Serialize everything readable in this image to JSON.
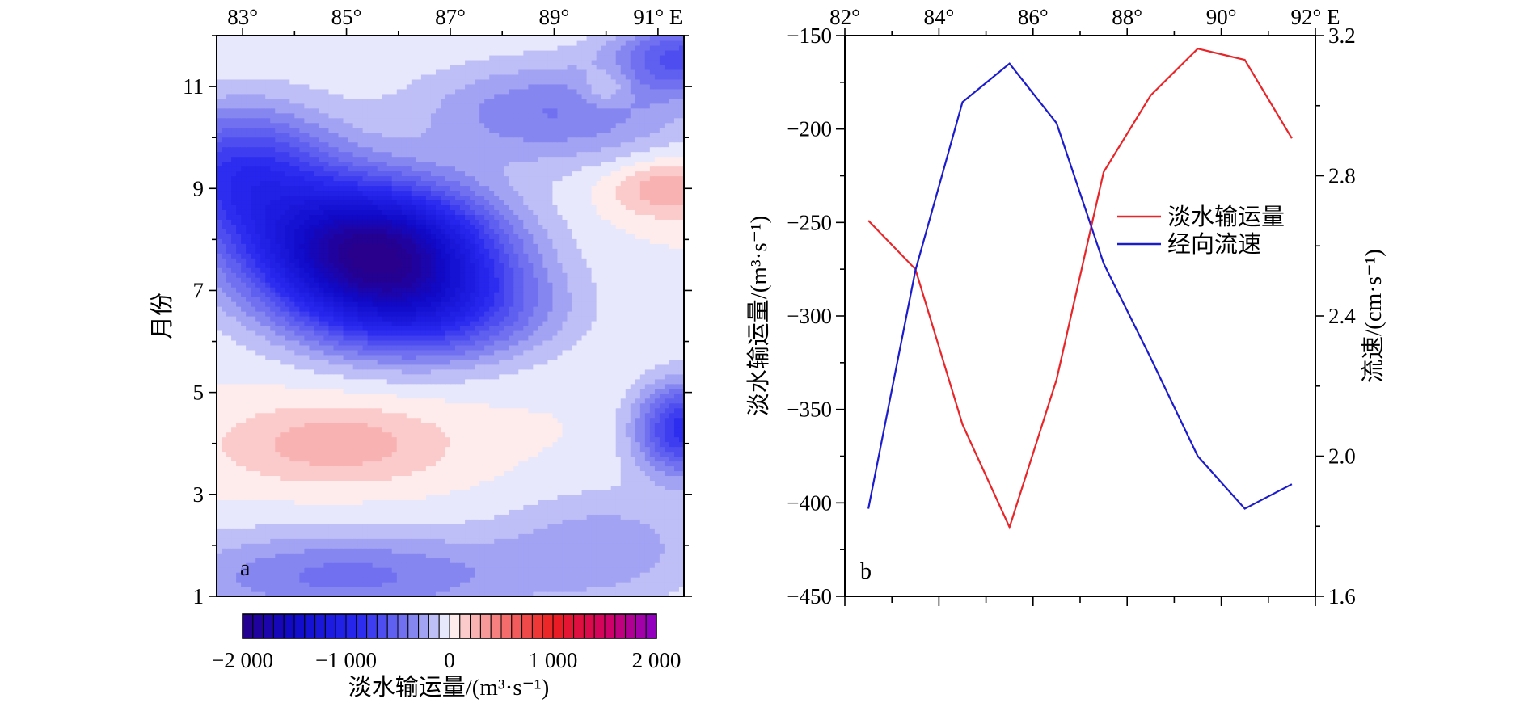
{
  "chart_data": [
    {
      "panel": "a",
      "type": "heatmap",
      "x_ticks": [
        "83°",
        "85°",
        "87°",
        "89°",
        "91° E"
      ],
      "x_tick_values": [
        83,
        85,
        87,
        89,
        91
      ],
      "x_range": [
        82.5,
        91.5
      ],
      "y_ticks": [
        "1",
        "3",
        "5",
        "7",
        "9",
        "11"
      ],
      "y_tick_values": [
        1,
        3,
        5,
        7,
        9,
        11
      ],
      "y_range": [
        1,
        12
      ],
      "ylabel": "月份",
      "colorbar": {
        "label": "淡水输运量/(m³·s⁻¹)",
        "ticks": [
          "−2 000",
          "−1 000",
          "0",
          "1 000",
          "2 000"
        ],
        "tick_values": [
          -2000,
          -1000,
          0,
          1000,
          2000
        ],
        "range": [
          -2000,
          2000
        ],
        "levels": 40
      },
      "features": [
        {
          "x": 85.5,
          "y": 7.8,
          "sx": 2.2,
          "sy": 1.25,
          "value": -1900
        },
        {
          "x": 86.5,
          "y": 6.6,
          "sx": 2.3,
          "sy": 1.0,
          "value": -700
        },
        {
          "x": 83.0,
          "y": 9.3,
          "sx": 1.8,
          "sy": 1.3,
          "value": -800
        },
        {
          "x": 89.0,
          "y": 10.5,
          "sx": 2.6,
          "sy": 1.0,
          "value": -400
        },
        {
          "x": 91.5,
          "y": 11.6,
          "sx": 1.3,
          "sy": 0.7,
          "value": -600
        },
        {
          "x": 91.5,
          "y": 4.3,
          "sx": 0.9,
          "sy": 0.9,
          "value": -850
        },
        {
          "x": 91.3,
          "y": 9.0,
          "sx": 1.2,
          "sy": 0.55,
          "value": 320
        },
        {
          "x": 84.8,
          "y": 4.0,
          "sx": 2.2,
          "sy": 0.8,
          "value": 270
        },
        {
          "x": 85.0,
          "y": 1.4,
          "sx": 3.5,
          "sy": 0.9,
          "value": -430
        },
        {
          "x": 90.0,
          "y": 2.0,
          "sx": 2.0,
          "sy": 1.1,
          "value": -250
        },
        {
          "x": 90.0,
          "y": 11.0,
          "sx": 0.5,
          "sy": 0.4,
          "value": 200
        }
      ],
      "panel_label": "a"
    },
    {
      "panel": "b",
      "type": "line",
      "x": [
        82.5,
        83.5,
        84.5,
        85.5,
        86.5,
        87.5,
        88.5,
        89.5,
        90.5,
        91.5
      ],
      "x_ticks": [
        "82°",
        "84°",
        "86°",
        "88°",
        "90°",
        "92° E"
      ],
      "x_tick_values": [
        82,
        84,
        86,
        88,
        90,
        92
      ],
      "xlim": [
        82,
        92
      ],
      "y_left_ticks": [
        "−150",
        "−200",
        "−250",
        "−300",
        "−350",
        "−400",
        "−450"
      ],
      "y_left_tick_values": [
        -150,
        -200,
        -250,
        -300,
        -350,
        -400,
        -450
      ],
      "ylim_left": [
        -450,
        -150
      ],
      "ylabel_left": "淡水输运量/(m³·s⁻¹)",
      "y_right_ticks": [
        "3.2",
        "2.8",
        "2.4",
        "2.0",
        "1.6"
      ],
      "y_right_tick_values": [
        3.2,
        2.8,
        2.4,
        2.0,
        1.6
      ],
      "ylim_right": [
        1.6,
        3.2
      ],
      "ylabel_right": "流速/(cm·s⁻¹)",
      "series": [
        {
          "name": "淡水输运量",
          "axis": "left",
          "color": "#e8262a",
          "values": [
            -249,
            -275,
            -358,
            -413,
            -334,
            -223,
            -182,
            -157,
            -163,
            -205
          ]
        },
        {
          "name": "经向流速",
          "axis": "right",
          "color": "#1c1ccc",
          "values": [
            1.85,
            2.53,
            3.01,
            3.12,
            2.95,
            2.55,
            2.28,
            2.0,
            1.85,
            1.92
          ]
        }
      ],
      "legend": "right",
      "panel_label": "b"
    }
  ]
}
